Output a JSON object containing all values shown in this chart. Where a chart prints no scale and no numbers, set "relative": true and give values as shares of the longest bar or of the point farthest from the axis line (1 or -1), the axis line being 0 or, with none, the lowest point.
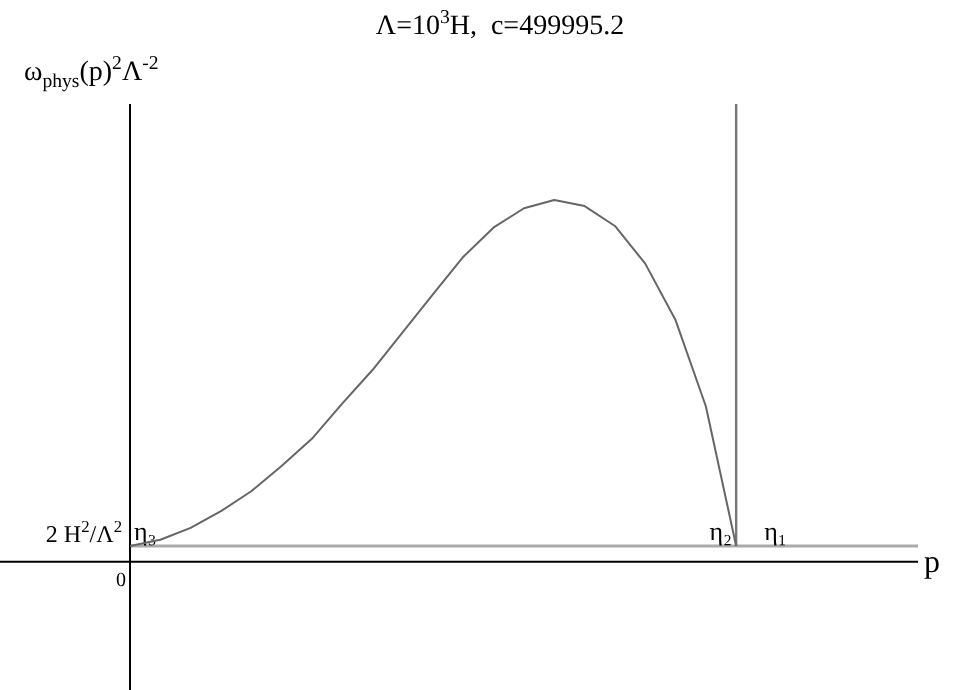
{
  "chart_data": {
    "type": "line",
    "relative": true,
    "title": "Λ=10$^{3}$H,  c=499995.2",
    "ylabel": "ω$_{phys}$(p)$^{2}$Λ$^{-2}$",
    "categories": [
      null,
      null,
      null,
      null,
      null,
      null,
      null,
      null,
      null,
      null,
      null,
      null,
      null,
      null,
      null,
      null,
      null,
      null,
      null,
      null,
      null
    ],
    "series": [
      {
        "color": "#666666",
        "values": [
          0.044,
          0.061,
          0.094,
          0.14,
          0.195,
          0.265,
          0.34,
          0.437,
          0.53,
          0.635,
          0.74,
          0.843,
          0.924,
          0.977,
          1,
          0.983,
          0.928,
          0.824,
          0.668,
          0.43,
          0.044
        ]
      }
    ],
    "ref_lines": [
      {
        "axis": "y",
        "value": 0.044,
        "label": "2 H$^{2}$/Λ$^{2}$",
        "color": "#aaaaaa"
      },
      {
        "axis": "x",
        "color": "#777777"
      }
    ],
    "annotations": [
      "0",
      "η₃",
      "η₂",
      "η₁",
      "p"
    ],
    "legend": false,
    "marker": "none",
    "line_style": "solid"
  }
}
